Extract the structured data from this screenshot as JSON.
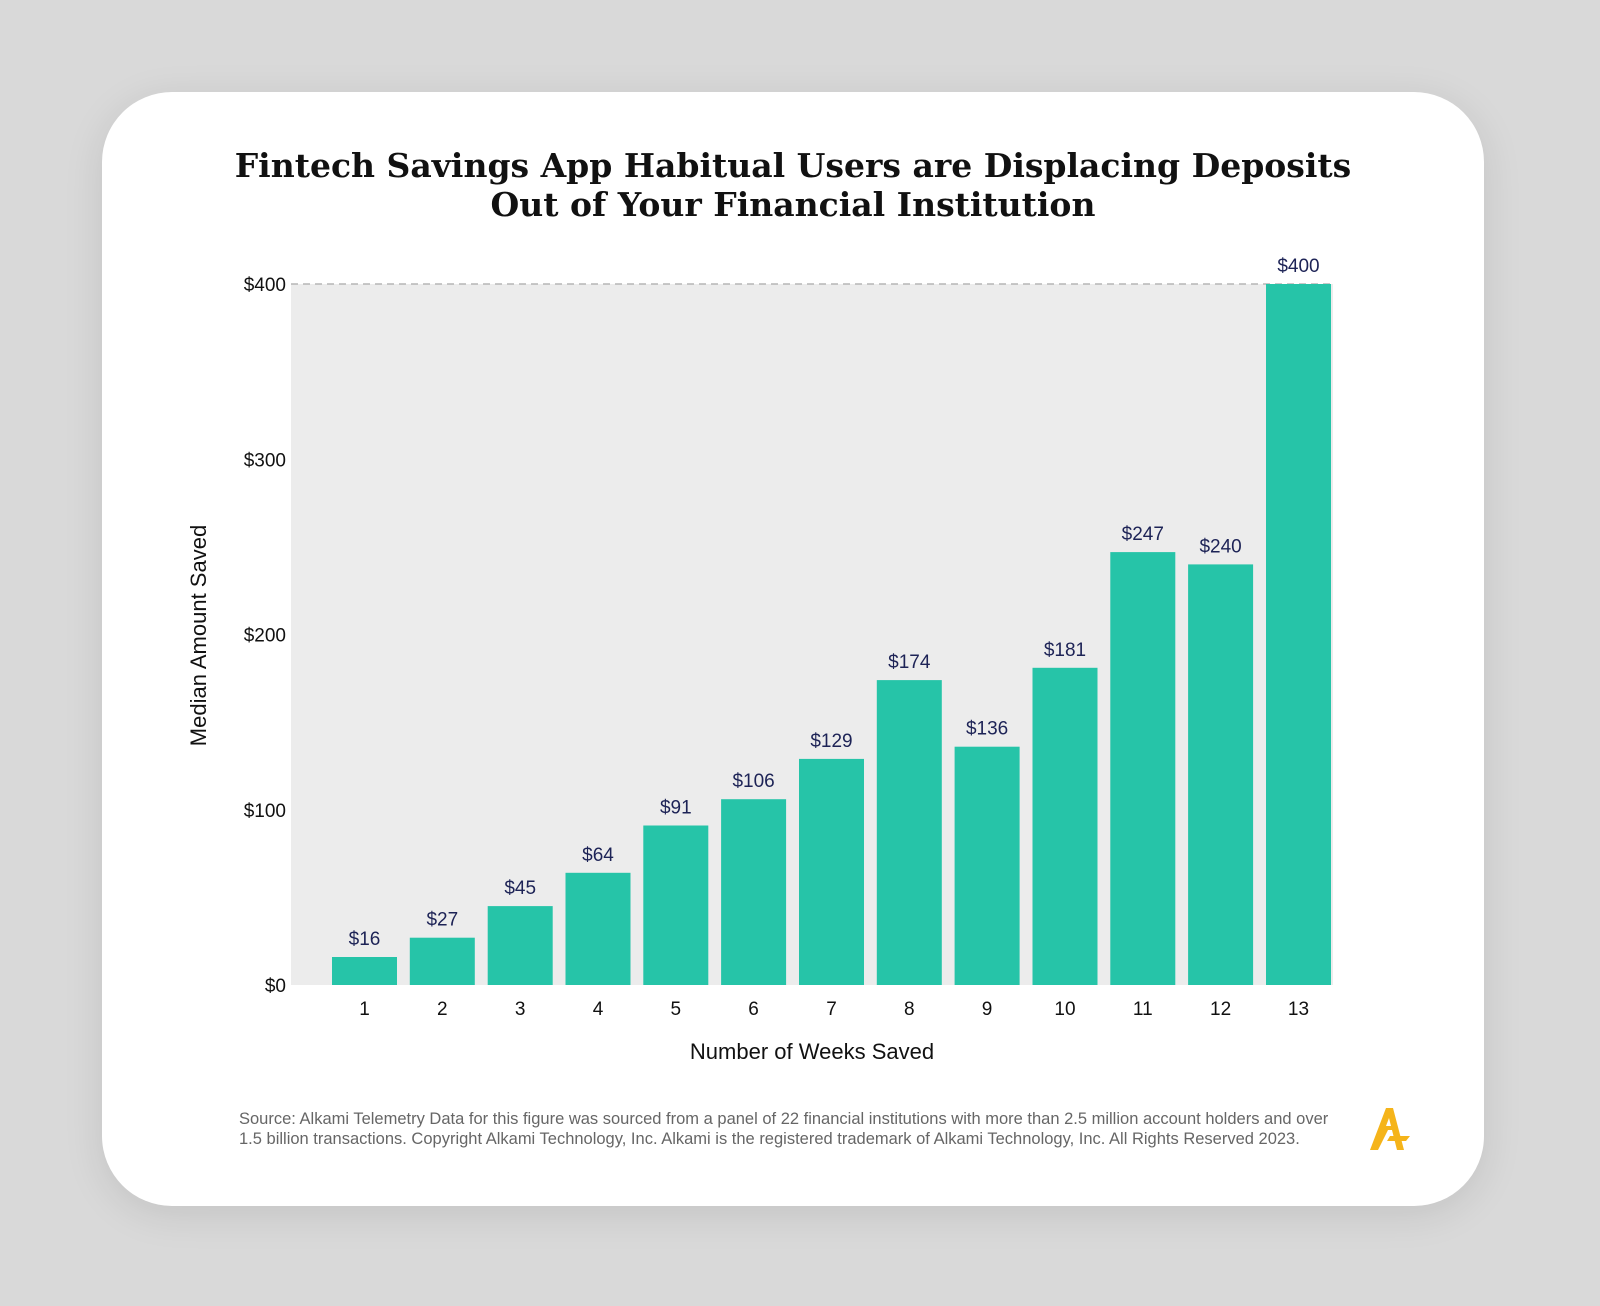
{
  "chart_data": {
    "type": "bar",
    "title": [
      "Fintech Savings App Habitual Users are Displacing Deposits",
      "Out of Your Financial Institution"
    ],
    "xlabel": "Number of Weeks Saved",
    "ylabel": "Median Amount Saved",
    "categories": [
      "1",
      "2",
      "3",
      "4",
      "5",
      "6",
      "7",
      "8",
      "9",
      "10",
      "11",
      "12",
      "13"
    ],
    "values": [
      16,
      27,
      45,
      64,
      91,
      106,
      129,
      174,
      136,
      181,
      247,
      240,
      400
    ],
    "data_labels": [
      "$16",
      "$27",
      "$45",
      "$64",
      "$91",
      "$106",
      "$129",
      "$174",
      "$136",
      "$181",
      "$247",
      "$240",
      "$400"
    ],
    "ylim": [
      0,
      400
    ],
    "yticks": [
      0,
      100,
      200,
      300,
      400
    ],
    "ytick_labels": [
      "$0",
      "$100",
      "$200",
      "$300",
      "$400"
    ],
    "grid": false,
    "bar_color": "#26c4a8",
    "plot_background": "#ececec",
    "label_color": "#1d2356"
  },
  "footer": {
    "source": "Source: Alkami Telemetry Data for this figure was sourced from a panel of 22 financial institutions with more than 2.5 million account holders and over 1.5 billion transactions. Copyright Alkami Technology, Inc. Alkami is the registered trademark of Alkami Technology, Inc. All Rights Reserved 2023."
  },
  "logo": {
    "icon": "alkami-logo-icon",
    "color": "#f5b41a"
  }
}
